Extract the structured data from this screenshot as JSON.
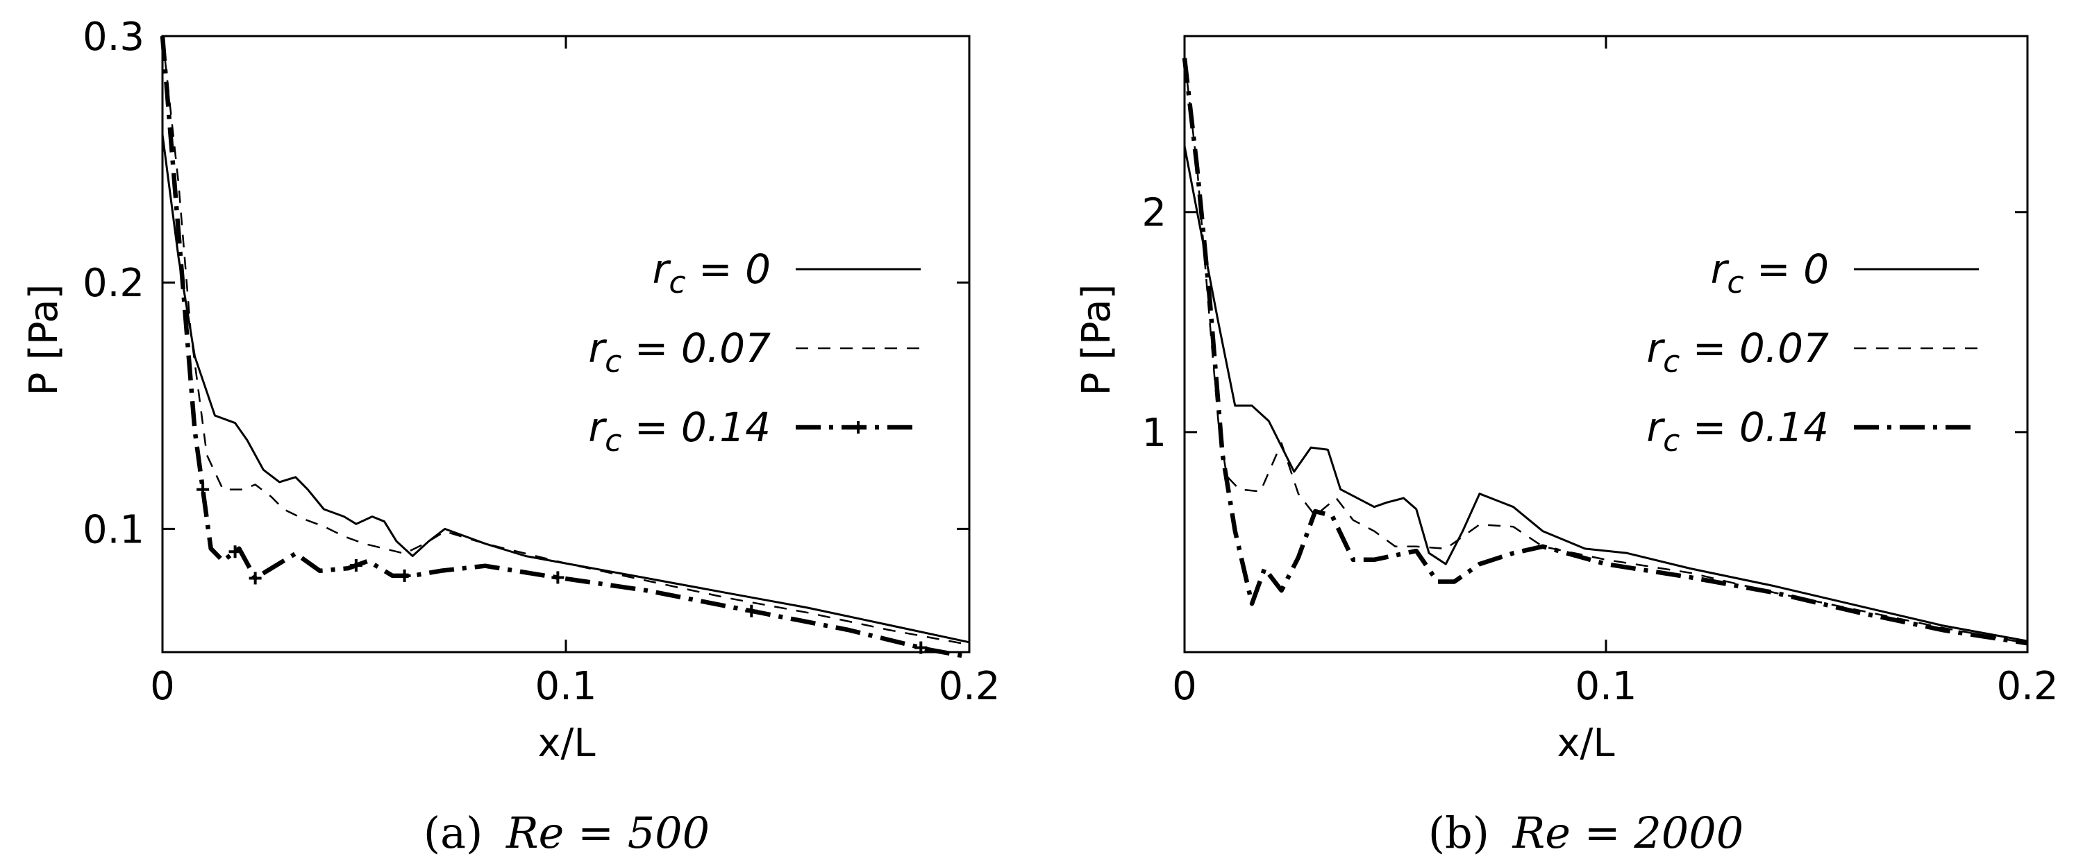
{
  "chart_data": [
    {
      "type": "line",
      "caption": {
        "tag": "(a)",
        "text": "Re = 500"
      },
      "xlabel": "x/L",
      "ylabel": "P [Pa]",
      "xlim": [
        0,
        0.2
      ],
      "ylim": [
        0.05,
        0.3
      ],
      "xticks": [
        "0",
        "0.1",
        "0.2"
      ],
      "xtick_values": [
        0,
        0.1,
        0.2
      ],
      "yticks": [
        "0.1",
        "0.2",
        "0.3"
      ],
      "ytick_values": [
        0.1,
        0.2,
        0.3
      ],
      "grid": false,
      "legend_position": "right",
      "series": [
        {
          "name": "r_c = 0",
          "legend_label": "= 0",
          "style": "solid",
          "x": [
            0,
            0.004,
            0.008,
            0.013,
            0.018,
            0.021,
            0.025,
            0.029,
            0.033,
            0.036,
            0.04,
            0.045,
            0.048,
            0.052,
            0.055,
            0.058,
            0.062,
            0.066,
            0.07,
            0.08,
            0.09,
            0.1,
            0.12,
            0.14,
            0.16,
            0.18,
            0.2
          ],
          "y": [
            0.26,
            0.21,
            0.17,
            0.146,
            0.143,
            0.136,
            0.124,
            0.119,
            0.121,
            0.116,
            0.108,
            0.105,
            0.102,
            0.105,
            0.103,
            0.095,
            0.089,
            0.095,
            0.1,
            0.094,
            0.089,
            0.086,
            0.08,
            0.074,
            0.068,
            0.061,
            0.054
          ]
        },
        {
          "name": "r_c = 0.07",
          "legend_label": "= 0.07",
          "style": "dashed",
          "x": [
            0,
            0.004,
            0.007,
            0.011,
            0.015,
            0.02,
            0.023,
            0.027,
            0.03,
            0.035,
            0.04,
            0.045,
            0.05,
            0.055,
            0.06,
            0.065,
            0.07,
            0.08,
            0.1,
            0.12,
            0.14,
            0.16,
            0.18,
            0.2
          ],
          "y": [
            0.3,
            0.24,
            0.18,
            0.13,
            0.116,
            0.116,
            0.118,
            0.113,
            0.108,
            0.104,
            0.101,
            0.097,
            0.094,
            0.092,
            0.09,
            0.094,
            0.099,
            0.094,
            0.086,
            0.079,
            0.072,
            0.066,
            0.059,
            0.053
          ]
        },
        {
          "name": "r_c = 0.14",
          "legend_label": "= 0.14",
          "style": "dashdot",
          "x": [
            0,
            0.004,
            0.008,
            0.012,
            0.015,
            0.019,
            0.023,
            0.027,
            0.033,
            0.039,
            0.046,
            0.051,
            0.057,
            0.062,
            0.069,
            0.08,
            0.095,
            0.12,
            0.145,
            0.17,
            0.19,
            0.2
          ],
          "y": [
            0.3,
            0.22,
            0.14,
            0.092,
            0.087,
            0.092,
            0.08,
            0.084,
            0.09,
            0.083,
            0.084,
            0.087,
            0.081,
            0.081,
            0.083,
            0.085,
            0.081,
            0.075,
            0.067,
            0.059,
            0.051,
            0.048
          ],
          "markers_x": [
            0.01,
            0.018,
            0.023,
            0.048,
            0.06,
            0.098,
            0.146,
            0.188
          ]
        }
      ]
    },
    {
      "type": "line",
      "caption": {
        "tag": "(b)",
        "text": "Re = 2000"
      },
      "xlabel": "x/L",
      "ylabel": "P [Pa]",
      "xlim": [
        0,
        0.2
      ],
      "ylim": [
        0,
        2.8
      ],
      "xticks": [
        "0",
        "0.1",
        "0.2"
      ],
      "xtick_values": [
        0,
        0.1,
        0.2
      ],
      "yticks": [
        "1",
        "2"
      ],
      "ytick_values": [
        1,
        2
      ],
      "grid": false,
      "legend_position": "right",
      "series": [
        {
          "name": "r_c = 0",
          "legend_label": "= 0",
          "style": "solid",
          "x": [
            0,
            0.004,
            0.008,
            0.012,
            0.016,
            0.02,
            0.026,
            0.03,
            0.034,
            0.037,
            0.04,
            0.045,
            0.048,
            0.052,
            0.055,
            0.058,
            0.062,
            0.066,
            0.07,
            0.078,
            0.085,
            0.095,
            0.105,
            0.12,
            0.14,
            0.16,
            0.18,
            0.2
          ],
          "y": [
            2.3,
            1.9,
            1.5,
            1.12,
            1.12,
            1.05,
            0.82,
            0.93,
            0.92,
            0.74,
            0.71,
            0.66,
            0.68,
            0.7,
            0.65,
            0.45,
            0.4,
            0.55,
            0.72,
            0.66,
            0.55,
            0.47,
            0.45,
            0.38,
            0.3,
            0.21,
            0.12,
            0.05
          ]
        },
        {
          "name": "r_c = 0.07",
          "legend_label": "= 0.07",
          "style": "dashed",
          "x": [
            0,
            0.003,
            0.006,
            0.008,
            0.01,
            0.013,
            0.018,
            0.023,
            0.027,
            0.031,
            0.036,
            0.04,
            0.045,
            0.05,
            0.055,
            0.062,
            0.07,
            0.078,
            0.085,
            0.1,
            0.12,
            0.14,
            0.16,
            0.18,
            0.2
          ],
          "y": [
            2.7,
            2.2,
            1.5,
            1.05,
            0.8,
            0.74,
            0.73,
            0.95,
            0.72,
            0.62,
            0.7,
            0.6,
            0.55,
            0.48,
            0.48,
            0.47,
            0.58,
            0.57,
            0.48,
            0.42,
            0.36,
            0.27,
            0.19,
            0.11,
            0.04
          ]
        },
        {
          "name": "r_c = 0.14",
          "legend_label": "= 0.14",
          "style": "dashdot",
          "x": [
            0,
            0.003,
            0.006,
            0.009,
            0.012,
            0.016,
            0.019,
            0.023,
            0.027,
            0.031,
            0.035,
            0.04,
            0.045,
            0.05,
            0.055,
            0.06,
            0.064,
            0.07,
            0.078,
            0.085,
            0.1,
            0.12,
            0.14,
            0.16,
            0.18,
            0.2
          ],
          "y": [
            2.7,
            2.2,
            1.6,
            0.9,
            0.55,
            0.22,
            0.38,
            0.28,
            0.43,
            0.64,
            0.62,
            0.42,
            0.42,
            0.44,
            0.46,
            0.32,
            0.32,
            0.4,
            0.45,
            0.48,
            0.4,
            0.34,
            0.27,
            0.18,
            0.1,
            0.04
          ]
        }
      ]
    }
  ]
}
